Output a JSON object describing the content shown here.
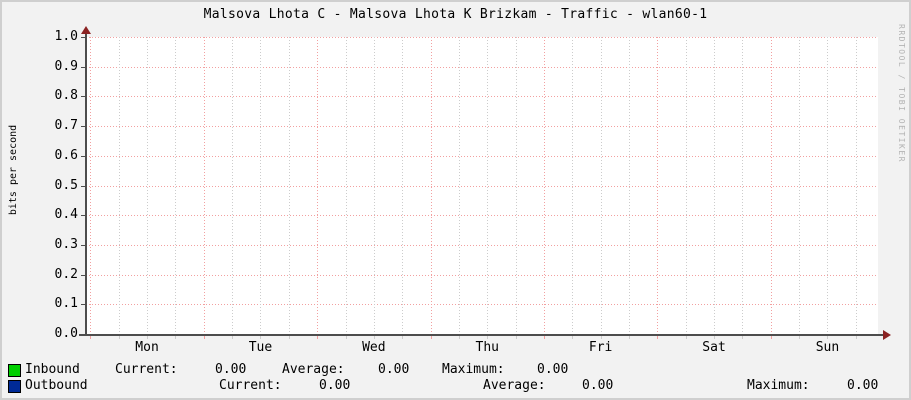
{
  "title": "Malsova Lhota C - Malsova Lhota K Brizkam - Traffic - wlan60-1",
  "watermark": "RRDTOOL / TOBI OETIKER",
  "y_axis": {
    "label": "bits per second",
    "ticks": [
      "1.0",
      "0.9",
      "0.8",
      "0.7",
      "0.6",
      "0.5",
      "0.4",
      "0.3",
      "0.2",
      "0.1",
      "0.0"
    ]
  },
  "x_axis": {
    "labels": [
      "Mon",
      "Tue",
      "Wed",
      "Thu",
      "Fri",
      "Sat",
      "Sun"
    ]
  },
  "legend": {
    "stat_labels": {
      "current": "Current:",
      "average": "Average:",
      "maximum": "Maximum:"
    },
    "rows": [
      {
        "name": "Inbound",
        "swatch_color": "#00CF00",
        "current": "0.00",
        "average": "0.00",
        "maximum": "0.00"
      },
      {
        "name": "Outbound",
        "swatch_color": "#002A97",
        "current": "0.00",
        "average": "0.00",
        "maximum": "0.00"
      }
    ]
  },
  "colors": {
    "background": "#f2f2f2",
    "border": "#cfcfcf",
    "plot_background": "#ffffff",
    "major_grid": "#f2a0a0",
    "minor_grid": "#cccccc",
    "axis": "#4d4d4d",
    "arrow": "#8b2323",
    "watermark_text": "#b3b3b3",
    "inbound": "#00CF00",
    "outbound": "#002A97"
  },
  "chart_data": {
    "type": "line",
    "title": "Malsova Lhota C - Malsova Lhota K Brizkam - Traffic - wlan60-1",
    "xlabel": "",
    "ylabel": "bits per second",
    "ylim": [
      0.0,
      1.0
    ],
    "y_tick_step": 0.1,
    "x": [
      "Mon",
      "Tue",
      "Wed",
      "Thu",
      "Fri",
      "Sat",
      "Sun"
    ],
    "series": [
      {
        "name": "Inbound",
        "color": "#00CF00",
        "values": [
          0,
          0,
          0,
          0,
          0,
          0,
          0
        ],
        "current": 0.0,
        "average": 0.0,
        "maximum": 0.0
      },
      {
        "name": "Outbound",
        "color": "#002A97",
        "values": [
          0,
          0,
          0,
          0,
          0,
          0,
          0
        ],
        "current": 0.0,
        "average": 0.0,
        "maximum": 0.0
      }
    ],
    "grid": true,
    "legend_position": "bottom",
    "annotations": [
      "RRDTOOL / TOBI OETIKER"
    ]
  }
}
